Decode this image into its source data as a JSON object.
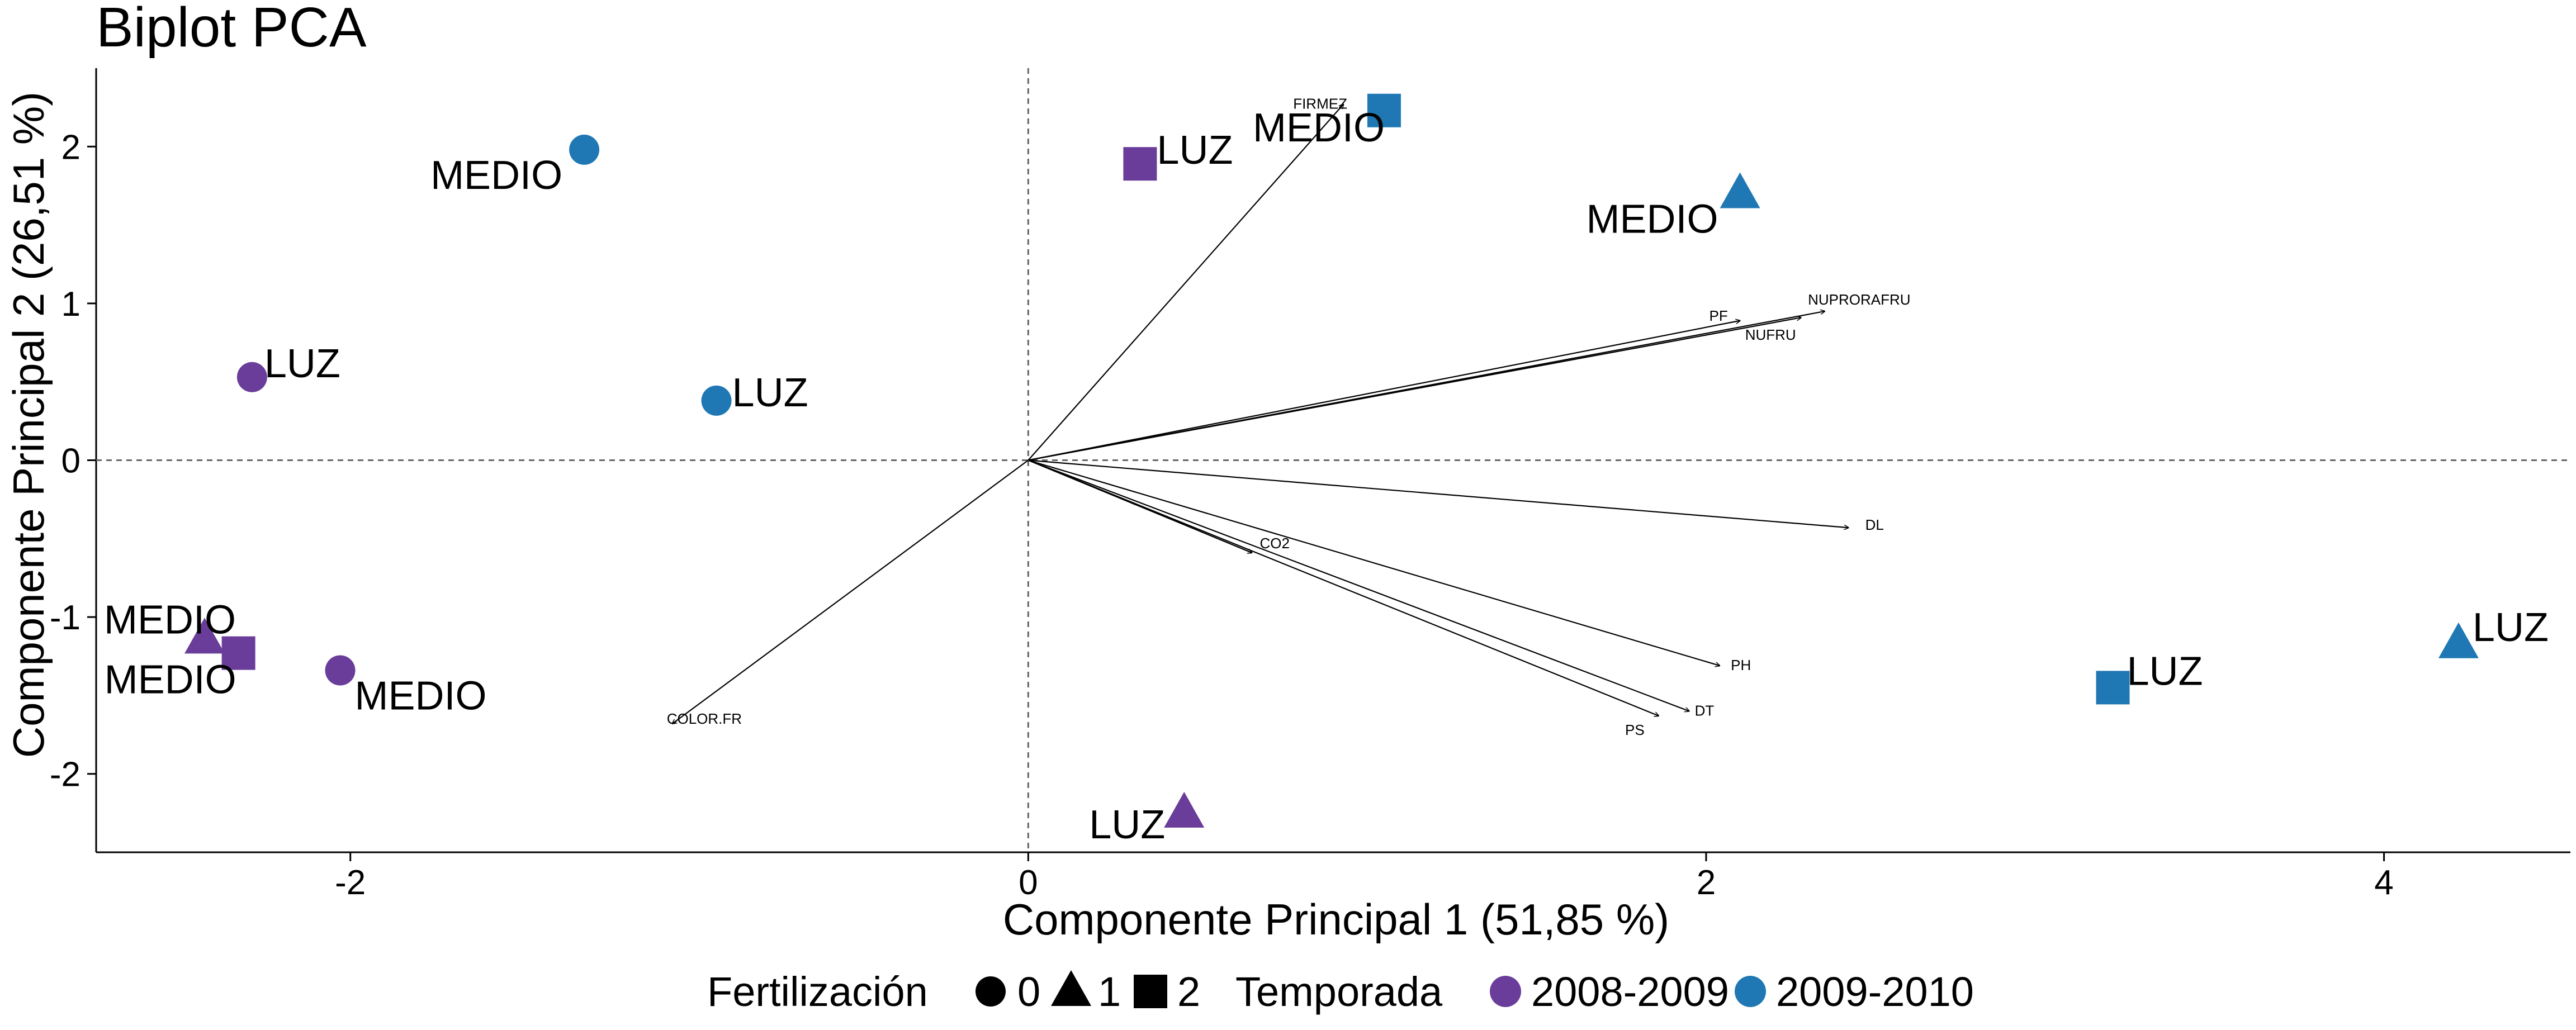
{
  "chart_data": {
    "type": "scatter",
    "title": "Biplot PCA",
    "xlabel": "Componente Principal 1 (51,85 %)",
    "ylabel": "Componente Principal 2 (26,51 %)",
    "xlim": [
      -2.75,
      4.55
    ],
    "ylim": [
      -2.5,
      2.5
    ],
    "x_ticks": [
      -2,
      0,
      2,
      4
    ],
    "y_ticks": [
      -2,
      -1,
      0,
      1,
      2
    ],
    "reference_lines": {
      "x": 0,
      "y": 0,
      "style": "dashed"
    },
    "grid": false,
    "points": [
      {
        "x": -1.31,
        "y": 1.98,
        "label": "MEDIO",
        "fertilizacion": "0",
        "temporada": "2009-2010"
      },
      {
        "x": -0.92,
        "y": 0.38,
        "label": "LUZ",
        "fertilizacion": "0",
        "temporada": "2009-2010"
      },
      {
        "x": -2.29,
        "y": 0.53,
        "label": "LUZ",
        "fertilizacion": "0",
        "temporada": "2008-2009"
      },
      {
        "x": -2.03,
        "y": -1.34,
        "label": "MEDIO",
        "fertilizacion": "0",
        "temporada": "2008-2009"
      },
      {
        "x": -2.43,
        "y": -1.14,
        "label": "MEDIO",
        "fertilizacion": "1",
        "temporada": "2008-2009"
      },
      {
        "x": -2.33,
        "y": -1.23,
        "label": "MEDIO",
        "fertilizacion": "2",
        "temporada": "2008-2009"
      },
      {
        "x": 0.33,
        "y": 1.89,
        "label": "LUZ",
        "fertilizacion": "2",
        "temporada": "2008-2009"
      },
      {
        "x": 1.05,
        "y": 2.23,
        "label": "MEDIO",
        "fertilizacion": "2",
        "temporada": "2009-2010"
      },
      {
        "x": 2.1,
        "y": 1.7,
        "label": "MEDIO",
        "fertilizacion": "1",
        "temporada": "2009-2010"
      },
      {
        "x": 0.46,
        "y": -2.25,
        "label": "LUZ",
        "fertilizacion": "1",
        "temporada": "2008-2009"
      },
      {
        "x": 3.2,
        "y": -1.45,
        "label": "LUZ",
        "fertilizacion": "2",
        "temporada": "2009-2010"
      },
      {
        "x": 4.22,
        "y": -1.17,
        "label": "LUZ",
        "fertilizacion": "1",
        "temporada": "2009-2010"
      }
    ],
    "loadings": [
      {
        "name": "FIRMEZ",
        "x": 0.93,
        "y": 2.27
      },
      {
        "name": "PF",
        "x": 2.1,
        "y": 0.89
      },
      {
        "name": "NUPRORAFRU",
        "x": 2.35,
        "y": 0.95
      },
      {
        "name": "NUFRU",
        "x": 2.28,
        "y": 0.91
      },
      {
        "name": "DL",
        "x": 2.42,
        "y": -0.43
      },
      {
        "name": "CO2",
        "x": 0.66,
        "y": -0.59
      },
      {
        "name": "PH",
        "x": 2.04,
        "y": -1.31
      },
      {
        "name": "DT",
        "x": 1.95,
        "y": -1.6
      },
      {
        "name": "PS",
        "x": 1.86,
        "y": -1.63
      },
      {
        "name": "COLOR.FR",
        "x": -1.05,
        "y": -1.68
      }
    ],
    "legend": {
      "placement": "bottom",
      "fertilizacion": {
        "title": "Fertilización",
        "items": [
          "0",
          "1",
          "2"
        ]
      },
      "temporada": {
        "title": "Temporada",
        "items": [
          {
            "name": "2008-2009",
            "color": "#6a3d9a"
          },
          {
            "name": "2009-2010",
            "color": "#1f78b4"
          }
        ]
      }
    }
  }
}
